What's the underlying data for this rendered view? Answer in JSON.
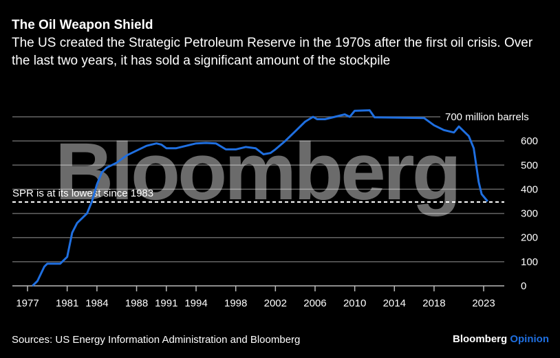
{
  "title": "The Oil Weapon Shield",
  "subtitle": "The US created the Strategic Petroleum Reserve in the 1970s after the first oil crisis. Over the last two years, it has sold a significant amount of the stockpile",
  "source": "Sources: US Energy Information Administration and Bloomberg",
  "brand": {
    "name": "Bloomberg",
    "section": "Opinion"
  },
  "watermark": "Bloomberg",
  "colors": {
    "line": "#1f6fe0",
    "background": "#000000",
    "grid": "#555555",
    "brand_accent": "#1f6fe0"
  },
  "chart_data": {
    "type": "line",
    "title": "The Oil Weapon Shield",
    "xlabel": "",
    "ylabel": "",
    "xlim": [
      1977,
      2024.5
    ],
    "ylim": [
      0,
      700
    ],
    "x_ticks": [
      1977,
      1981,
      1984,
      1988,
      1991,
      1994,
      1998,
      2002,
      2006,
      2010,
      2014,
      2018,
      2023
    ],
    "y_ticks": [
      0,
      100,
      200,
      300,
      400,
      500,
      600,
      700
    ],
    "y_tick_labels": [
      "0",
      "100",
      "200",
      "300",
      "400",
      "500",
      "600",
      "700 million barrels"
    ],
    "grid": true,
    "y_axis_side": "right",
    "series": [
      {
        "x": [
          1977.5,
          1978,
          1978.7,
          1979,
          1980.3,
          1981,
          1981.5,
          1982,
          1983,
          1983.5,
          1984,
          1984.5,
          1985,
          1986,
          1987,
          1988,
          1989,
          1990,
          1990.5,
          1991,
          1992,
          1993,
          1994,
          1995,
          1996,
          1997,
          1998,
          1999,
          2000,
          2000.8,
          2001.5,
          2002,
          2003,
          2004,
          2005,
          2005.8,
          2006.2,
          2007,
          2008,
          2009,
          2009.5,
          2010,
          2011.5,
          2012,
          2014,
          2017,
          2018,
          2019,
          2020,
          2020.5,
          2021,
          2021.5,
          2022,
          2022.5,
          2022.8,
          2023,
          2023.4
        ],
        "y": [
          0,
          20,
          80,
          92,
          92,
          120,
          220,
          260,
          300,
          350,
          420,
          470,
          490,
          510,
          540,
          560,
          580,
          590,
          585,
          570,
          570,
          580,
          590,
          592,
          590,
          565,
          565,
          575,
          570,
          545,
          550,
          565,
          600,
          640,
          680,
          700,
          690,
          690,
          700,
          710,
          700,
          725,
          727,
          698,
          697,
          695,
          665,
          645,
          635,
          660,
          640,
          620,
          570,
          430,
          380,
          370,
          350
        ]
      }
    ],
    "annotations": [
      {
        "text": "SPR is at its lowest since 1983",
        "y": 347,
        "style": "dashed-line"
      }
    ]
  }
}
